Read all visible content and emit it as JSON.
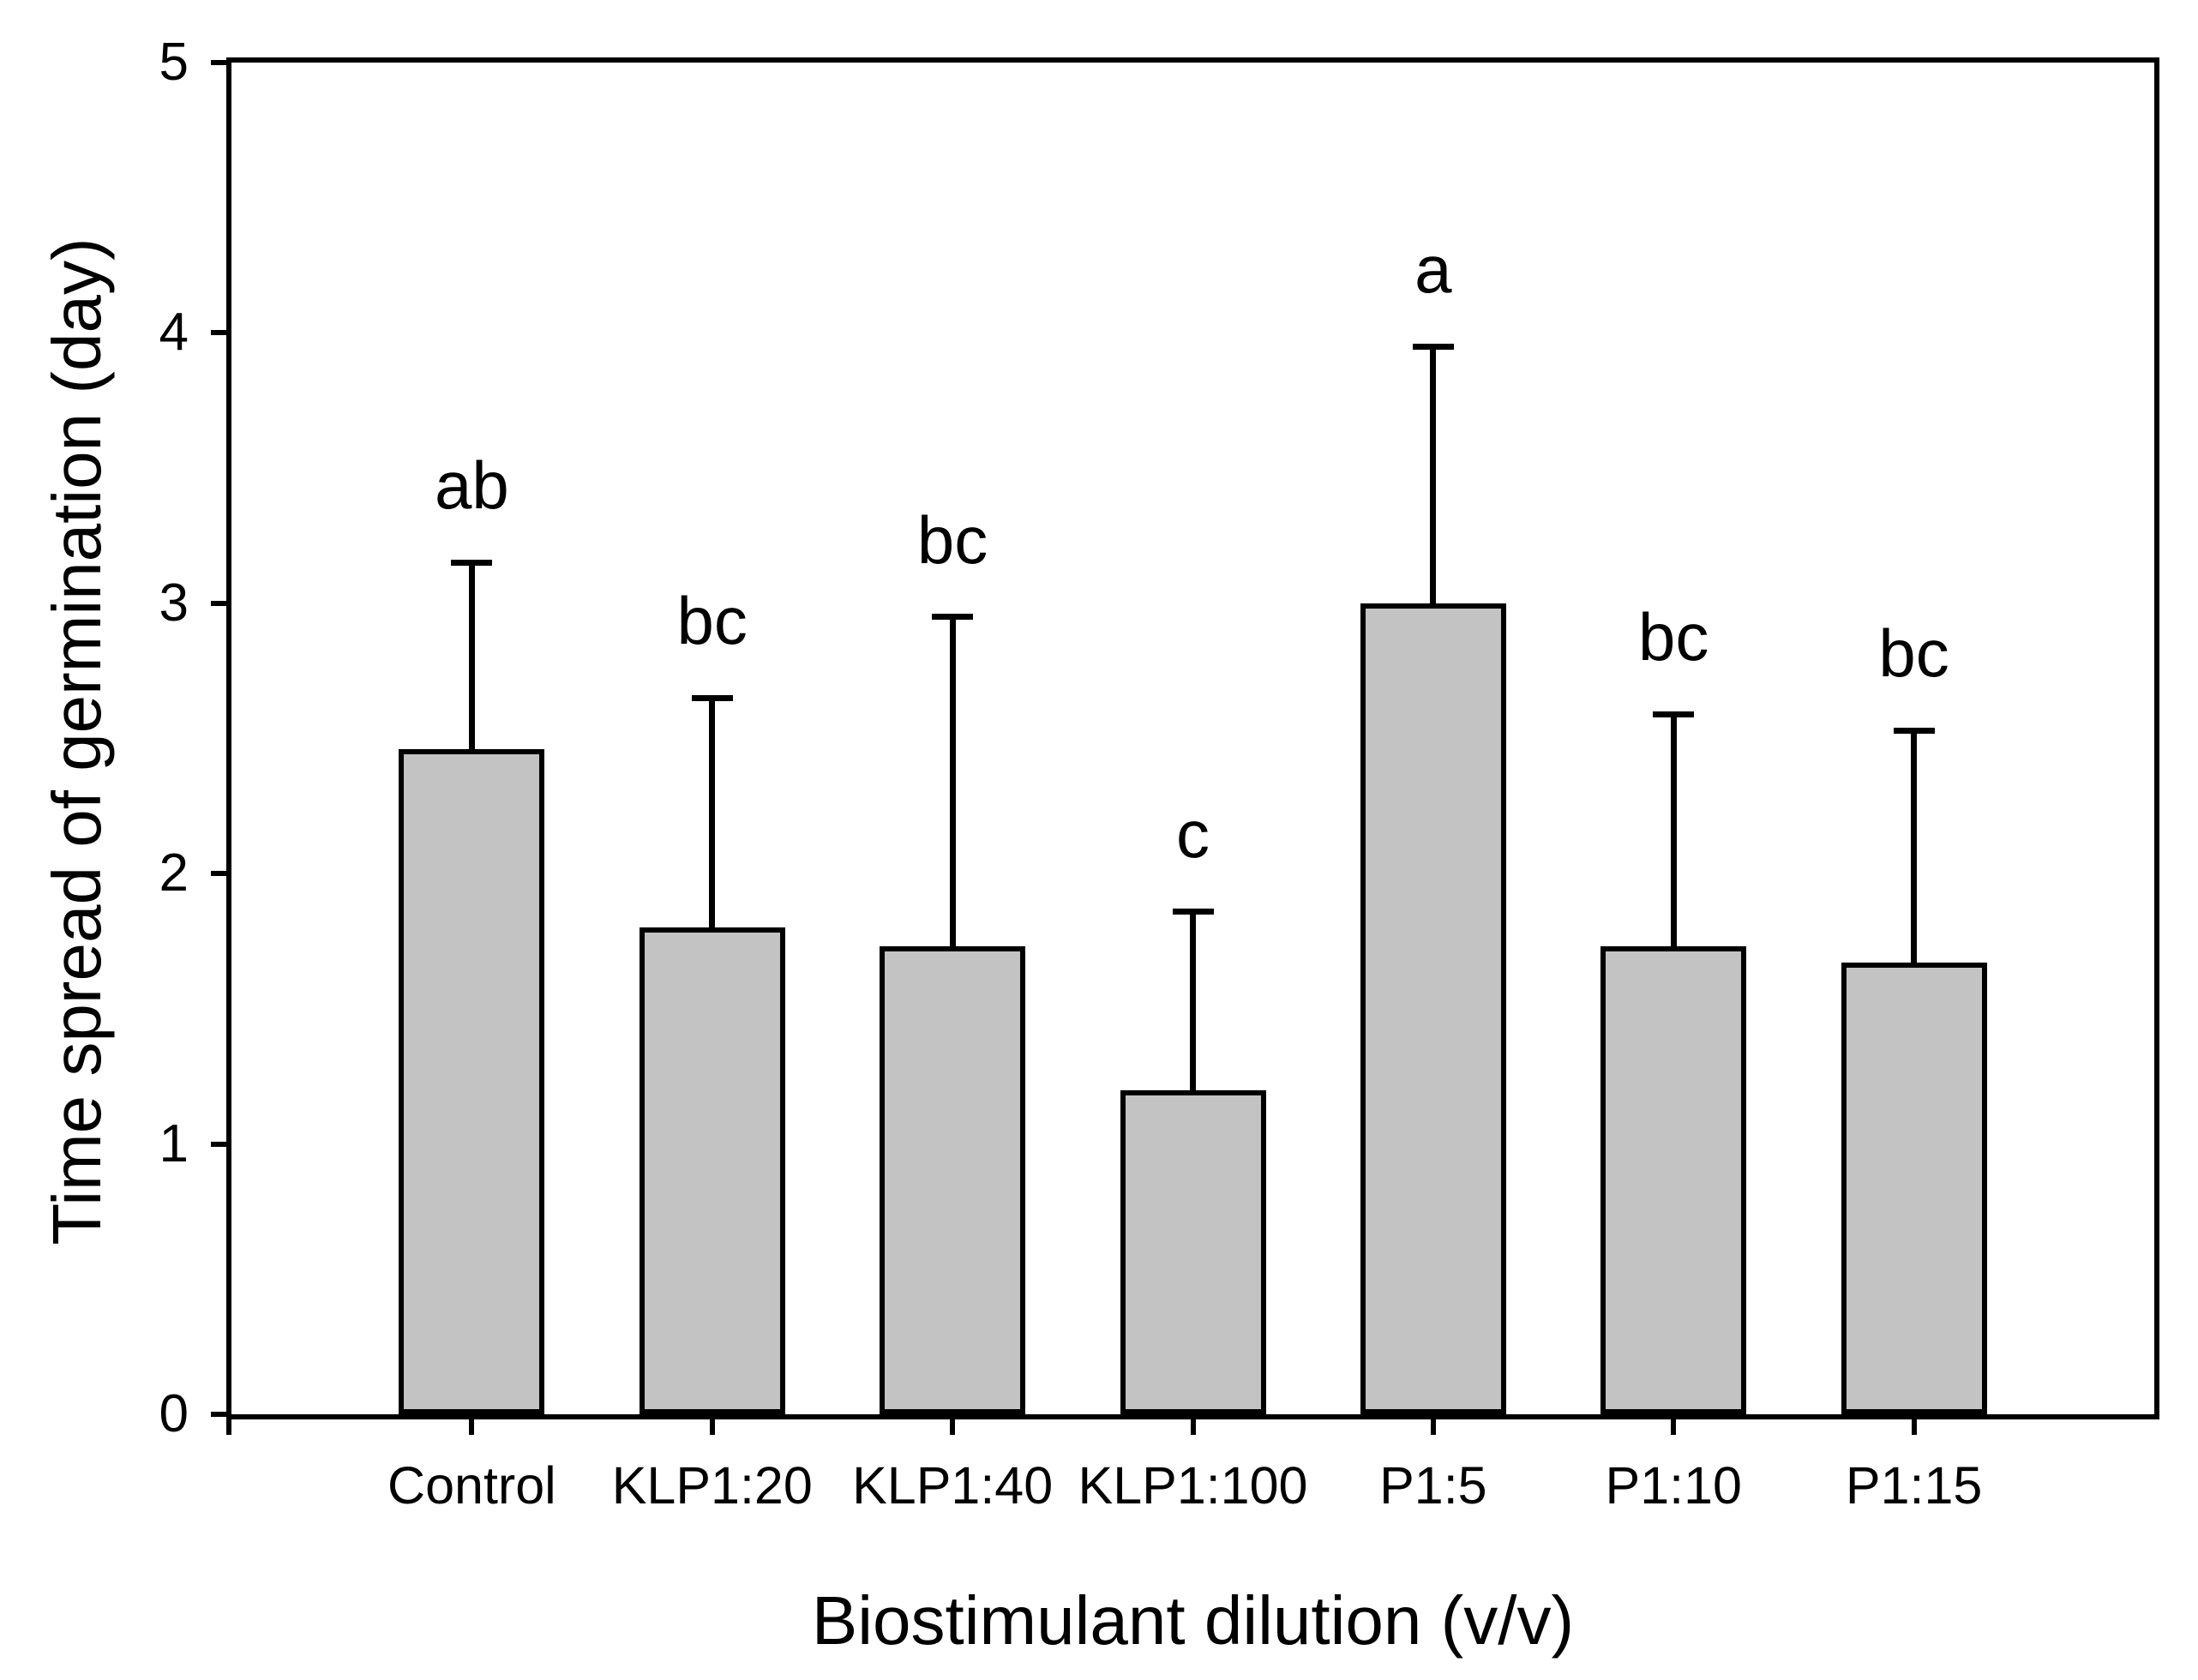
{
  "figure": {
    "background": "#ffffff",
    "axis_color": "#000000"
  },
  "chart_data": {
    "type": "bar",
    "title": "",
    "xlabel": "Biostimulant dilution (v/v)",
    "ylabel": "Time spread of germination (day)",
    "categories": [
      "Control",
      "KLP1:20",
      "KLP1:40",
      "KLP1:100",
      "P1:5",
      "P1:10",
      "P1:15"
    ],
    "values": [
      2.46,
      1.8,
      1.73,
      1.2,
      3.0,
      1.73,
      1.67
    ],
    "errors_upper": [
      0.69,
      0.85,
      1.22,
      0.66,
      0.95,
      0.86,
      0.86
    ],
    "sig_letters": [
      "ab",
      "bc",
      "bc",
      "c",
      "a",
      "bc",
      "bc"
    ],
    "ylim": [
      0,
      5
    ],
    "yticks": [
      0,
      1,
      2,
      3,
      4,
      5
    ],
    "grid": false,
    "legend": null,
    "bar_fill": "#c3c3c3",
    "bar_outline": "#000000",
    "error_bar_color": "#000000"
  }
}
